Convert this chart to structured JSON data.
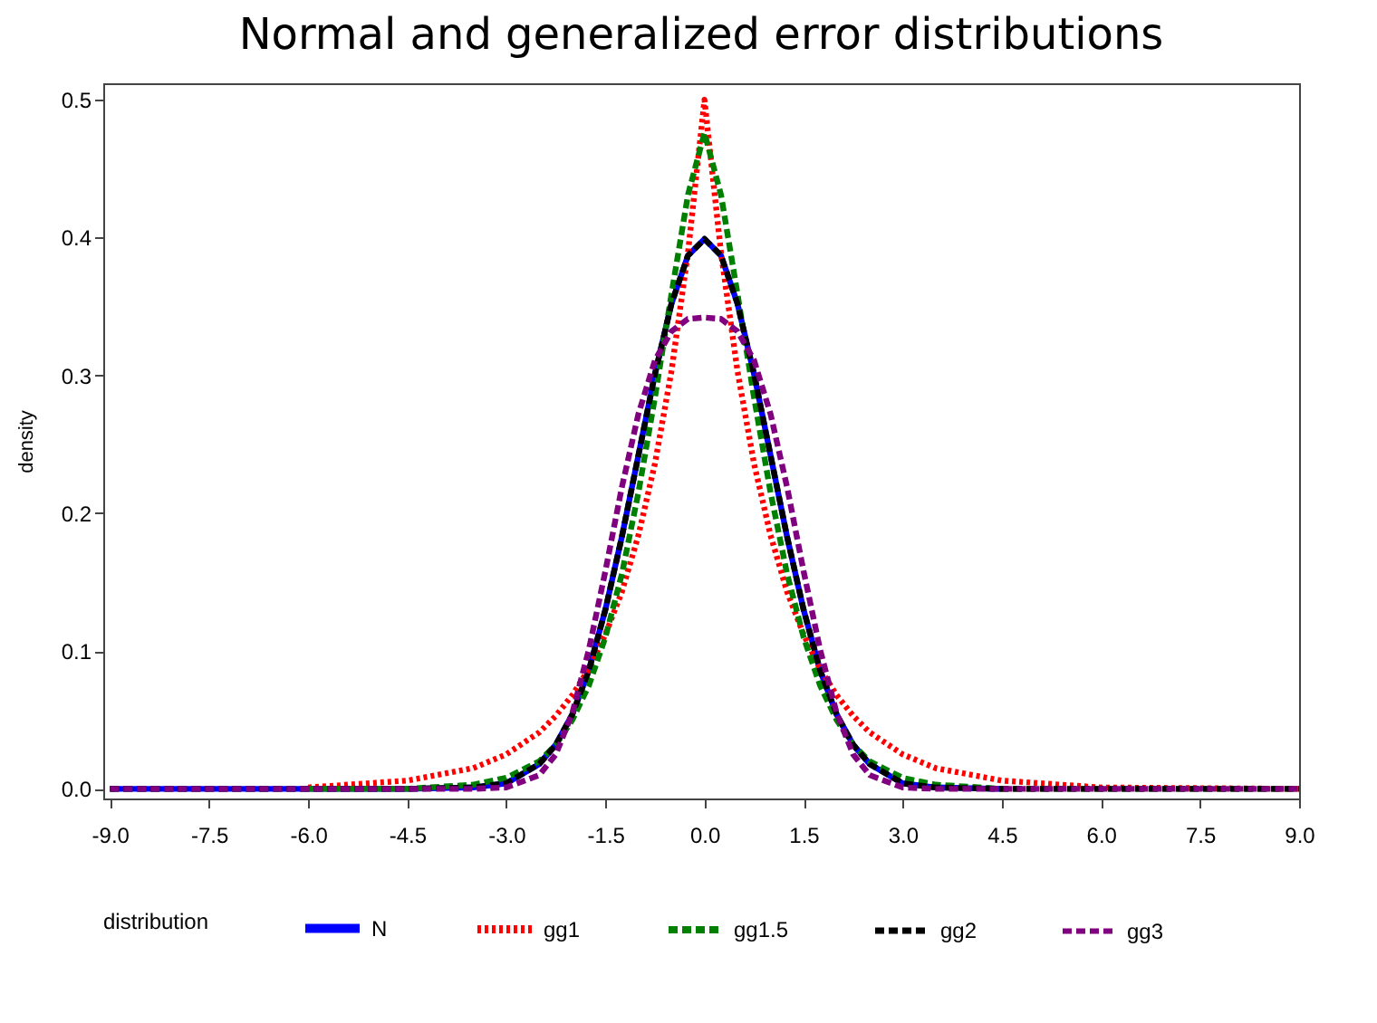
{
  "chart_data": {
    "type": "line",
    "title": "Normal and generalized error distributions",
    "ylabel": "density",
    "legend_title": "distribution",
    "x": [
      -9,
      -6,
      -4.5,
      -3.5,
      -3,
      -2.5,
      -2.25,
      -2,
      -1.75,
      -1.5,
      -1.25,
      -1,
      -0.75,
      -0.5,
      -0.25,
      0,
      0.25,
      0.5,
      0.75,
      1,
      1.25,
      1.5,
      1.75,
      2,
      2.25,
      2.5,
      3,
      3.5,
      4.5,
      6,
      9
    ],
    "series": [
      {
        "name": "N",
        "color": "#0000ff",
        "line_style": "solid",
        "values": [
          0,
          0,
          0,
          0.001,
          0.004,
          0.018,
          0.032,
          0.054,
          0.086,
          0.13,
          0.183,
          0.242,
          0.301,
          0.352,
          0.387,
          0.399,
          0.387,
          0.352,
          0.301,
          0.242,
          0.183,
          0.13,
          0.086,
          0.054,
          0.032,
          0.018,
          0.004,
          0.001,
          0,
          null,
          null
        ]
      },
      {
        "name": "gg1",
        "color": "#ff0000",
        "line_style": "dotted",
        "values": [
          null,
          0.001,
          0.006,
          0.015,
          0.025,
          0.041,
          0.053,
          0.068,
          0.087,
          0.112,
          0.143,
          0.184,
          0.236,
          0.303,
          0.389,
          0.5,
          0.389,
          0.303,
          0.236,
          0.184,
          0.143,
          0.112,
          0.087,
          0.068,
          0.053,
          0.041,
          0.025,
          0.015,
          0.006,
          0.001,
          0
        ]
      },
      {
        "name": "gg1.5",
        "color": "#008000",
        "line_style": "dashed",
        "values": [
          null,
          0,
          0,
          0.003,
          0.008,
          0.02,
          0.032,
          0.05,
          0.075,
          0.11,
          0.156,
          0.215,
          0.284,
          0.359,
          0.431,
          0.476,
          0.431,
          0.359,
          0.284,
          0.215,
          0.156,
          0.11,
          0.075,
          0.05,
          0.032,
          0.02,
          0.008,
          0.003,
          0,
          0,
          0
        ]
      },
      {
        "name": "gg2",
        "color": "#000000",
        "line_style": "dashed",
        "values": [
          0,
          0,
          0,
          0.001,
          0.004,
          0.018,
          0.032,
          0.054,
          0.086,
          0.13,
          0.183,
          0.242,
          0.301,
          0.352,
          0.387,
          0.399,
          0.387,
          0.352,
          0.301,
          0.242,
          0.183,
          0.13,
          0.086,
          0.054,
          0.032,
          0.018,
          0.004,
          0.001,
          0,
          0,
          0
        ]
      },
      {
        "name": "gg3",
        "color": "#800080",
        "line_style": "dashed",
        "values": [
          0,
          0,
          0,
          0,
          0.001,
          0.01,
          0.025,
          0.055,
          0.101,
          0.158,
          0.219,
          0.272,
          0.311,
          0.332,
          0.341,
          0.342,
          0.341,
          0.332,
          0.311,
          0.272,
          0.219,
          0.158,
          0.101,
          0.055,
          0.025,
          0.01,
          0.001,
          0,
          0,
          0,
          0
        ]
      }
    ],
    "xlim": [
      -9.1,
      9
    ],
    "xticks": [
      {
        "value": -9,
        "label": "-9.0"
      },
      -7.5,
      {
        "value": -6,
        "label": "-6.0"
      },
      -4.5,
      {
        "value": -3,
        "label": "-3.0"
      },
      -1.5,
      {
        "value": 0,
        "label": "0.0"
      },
      1.5,
      {
        "value": 3,
        "label": "3.0"
      },
      4.5,
      {
        "value": 6,
        "label": "6.0"
      },
      7.5,
      {
        "value": 9,
        "label": "9.0"
      }
    ],
    "ylim": [
      -0.007,
      0.512
    ],
    "yticks": [
      {
        "value": 0,
        "label": "0.0"
      },
      0.1,
      0.2,
      0.3,
      0.4,
      0.5
    ],
    "grid": false,
    "legend": "bottom"
  }
}
